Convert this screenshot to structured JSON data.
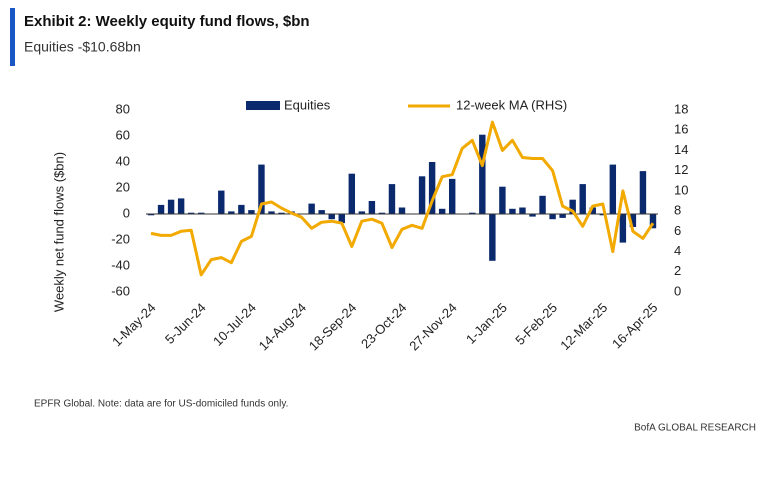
{
  "chart_data": {
    "type": "bar-line",
    "title": "Exhibit 2: Weekly equity fund flows, $bn",
    "subtitle": "Equities -$10.68bn",
    "ylabel": "Weekly net fund flows ($bn)",
    "footnote": "EPFR Global. Note: data are for US-domiciled funds only.",
    "source": "BofA GLOBAL RESEARCH",
    "categories": [
      "1-May-24",
      null,
      null,
      null,
      null,
      "5-Jun-24",
      null,
      null,
      null,
      null,
      "10-Jul-24",
      null,
      null,
      null,
      null,
      "14-Aug-24",
      null,
      null,
      null,
      null,
      "18-Sep-24",
      null,
      null,
      null,
      null,
      "23-Oct-24",
      null,
      null,
      null,
      null,
      "27-Nov-24",
      null,
      null,
      null,
      null,
      "1-Jan-25",
      null,
      null,
      null,
      null,
      "5-Feb-25",
      null,
      null,
      null,
      null,
      "12-Mar-25",
      null,
      null,
      null,
      null,
      "16-Apr-25"
    ],
    "series": [
      {
        "name": "Equities",
        "type": "bar",
        "color": "#0b2a6e",
        "values": [
          -1,
          7,
          11,
          12,
          1,
          1,
          0,
          18,
          2,
          7,
          3,
          38,
          2,
          1,
          2,
          0,
          8,
          3,
          -4,
          -7,
          31,
          2,
          10,
          1,
          23,
          5,
          0,
          29,
          40,
          4,
          27,
          0,
          1,
          61,
          -36,
          21,
          4,
          5,
          -2,
          14,
          -4,
          -3,
          11,
          23,
          5,
          -1,
          38,
          -22,
          -10,
          33,
          -11
        ]
      },
      {
        "name": "12-week MA (RHS)",
        "type": "line",
        "axis": "y2",
        "color": "#f2a900",
        "values": [
          5.8,
          5.6,
          5.6,
          6.0,
          6.1,
          1.7,
          3.2,
          3.4,
          2.9,
          5.0,
          5.5,
          8.7,
          8.9,
          8.3,
          7.8,
          7.4,
          6.3,
          6.9,
          7.0,
          6.8,
          4.5,
          7.0,
          7.2,
          6.8,
          4.4,
          6.2,
          6.6,
          6.3,
          9.0,
          11.4,
          11.6,
          14.2,
          15.0,
          12.5,
          16.8,
          14.0,
          15.0,
          13.3,
          13.2,
          13.2,
          12.0,
          8.5,
          8.0,
          6.5,
          8.5,
          8.7,
          4.0,
          10.0,
          6.0,
          5.3,
          6.8
        ]
      }
    ],
    "ylim": [
      -60,
      80
    ],
    "yticks": [
      -60,
      -40,
      -20,
      0,
      20,
      40,
      60,
      80
    ],
    "y2lim": [
      0,
      18
    ],
    "y2ticks": [
      0,
      2,
      4,
      6,
      8,
      10,
      12,
      14,
      16,
      18
    ],
    "grid": false,
    "legend": "top"
  }
}
